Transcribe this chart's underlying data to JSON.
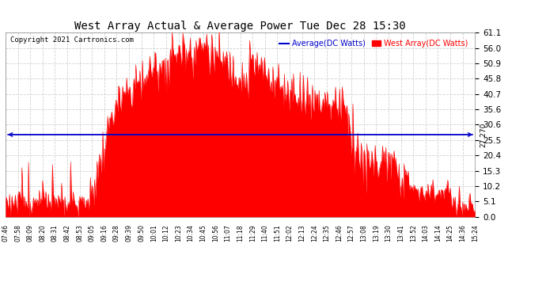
{
  "title": "West Array Actual & Average Power Tue Dec 28 15:30",
  "copyright": "Copyright 2021 Cartronics.com",
  "legend_avg": "Average(DC Watts)",
  "legend_west": "West Array(DC Watts)",
  "avg_value": 27.27,
  "avg_label": "27.270",
  "ymin": 0.0,
  "ymax": 61.1,
  "yticks": [
    0.0,
    5.1,
    10.2,
    15.3,
    20.4,
    25.5,
    30.6,
    35.6,
    40.7,
    45.8,
    50.9,
    56.0,
    61.1
  ],
  "bg_color": "#ffffff",
  "fill_color": "#ff0000",
  "avg_line_color": "#0000cc",
  "grid_color": "#cccccc",
  "title_color": "#000000",
  "copyright_color": "#000000",
  "xtick_labels": [
    "07:46",
    "07:58",
    "08:09",
    "08:20",
    "08:31",
    "08:42",
    "08:53",
    "09:05",
    "09:16",
    "09:28",
    "09:39",
    "09:50",
    "10:01",
    "10:12",
    "10:23",
    "10:34",
    "10:45",
    "10:56",
    "11:07",
    "11:18",
    "11:29",
    "11:40",
    "11:51",
    "12:02",
    "12:13",
    "12:24",
    "12:35",
    "12:46",
    "12:57",
    "13:08",
    "13:19",
    "13:30",
    "13:41",
    "13:52",
    "14:03",
    "14:14",
    "14:25",
    "14:36",
    "15:24"
  ],
  "n_points": 570
}
